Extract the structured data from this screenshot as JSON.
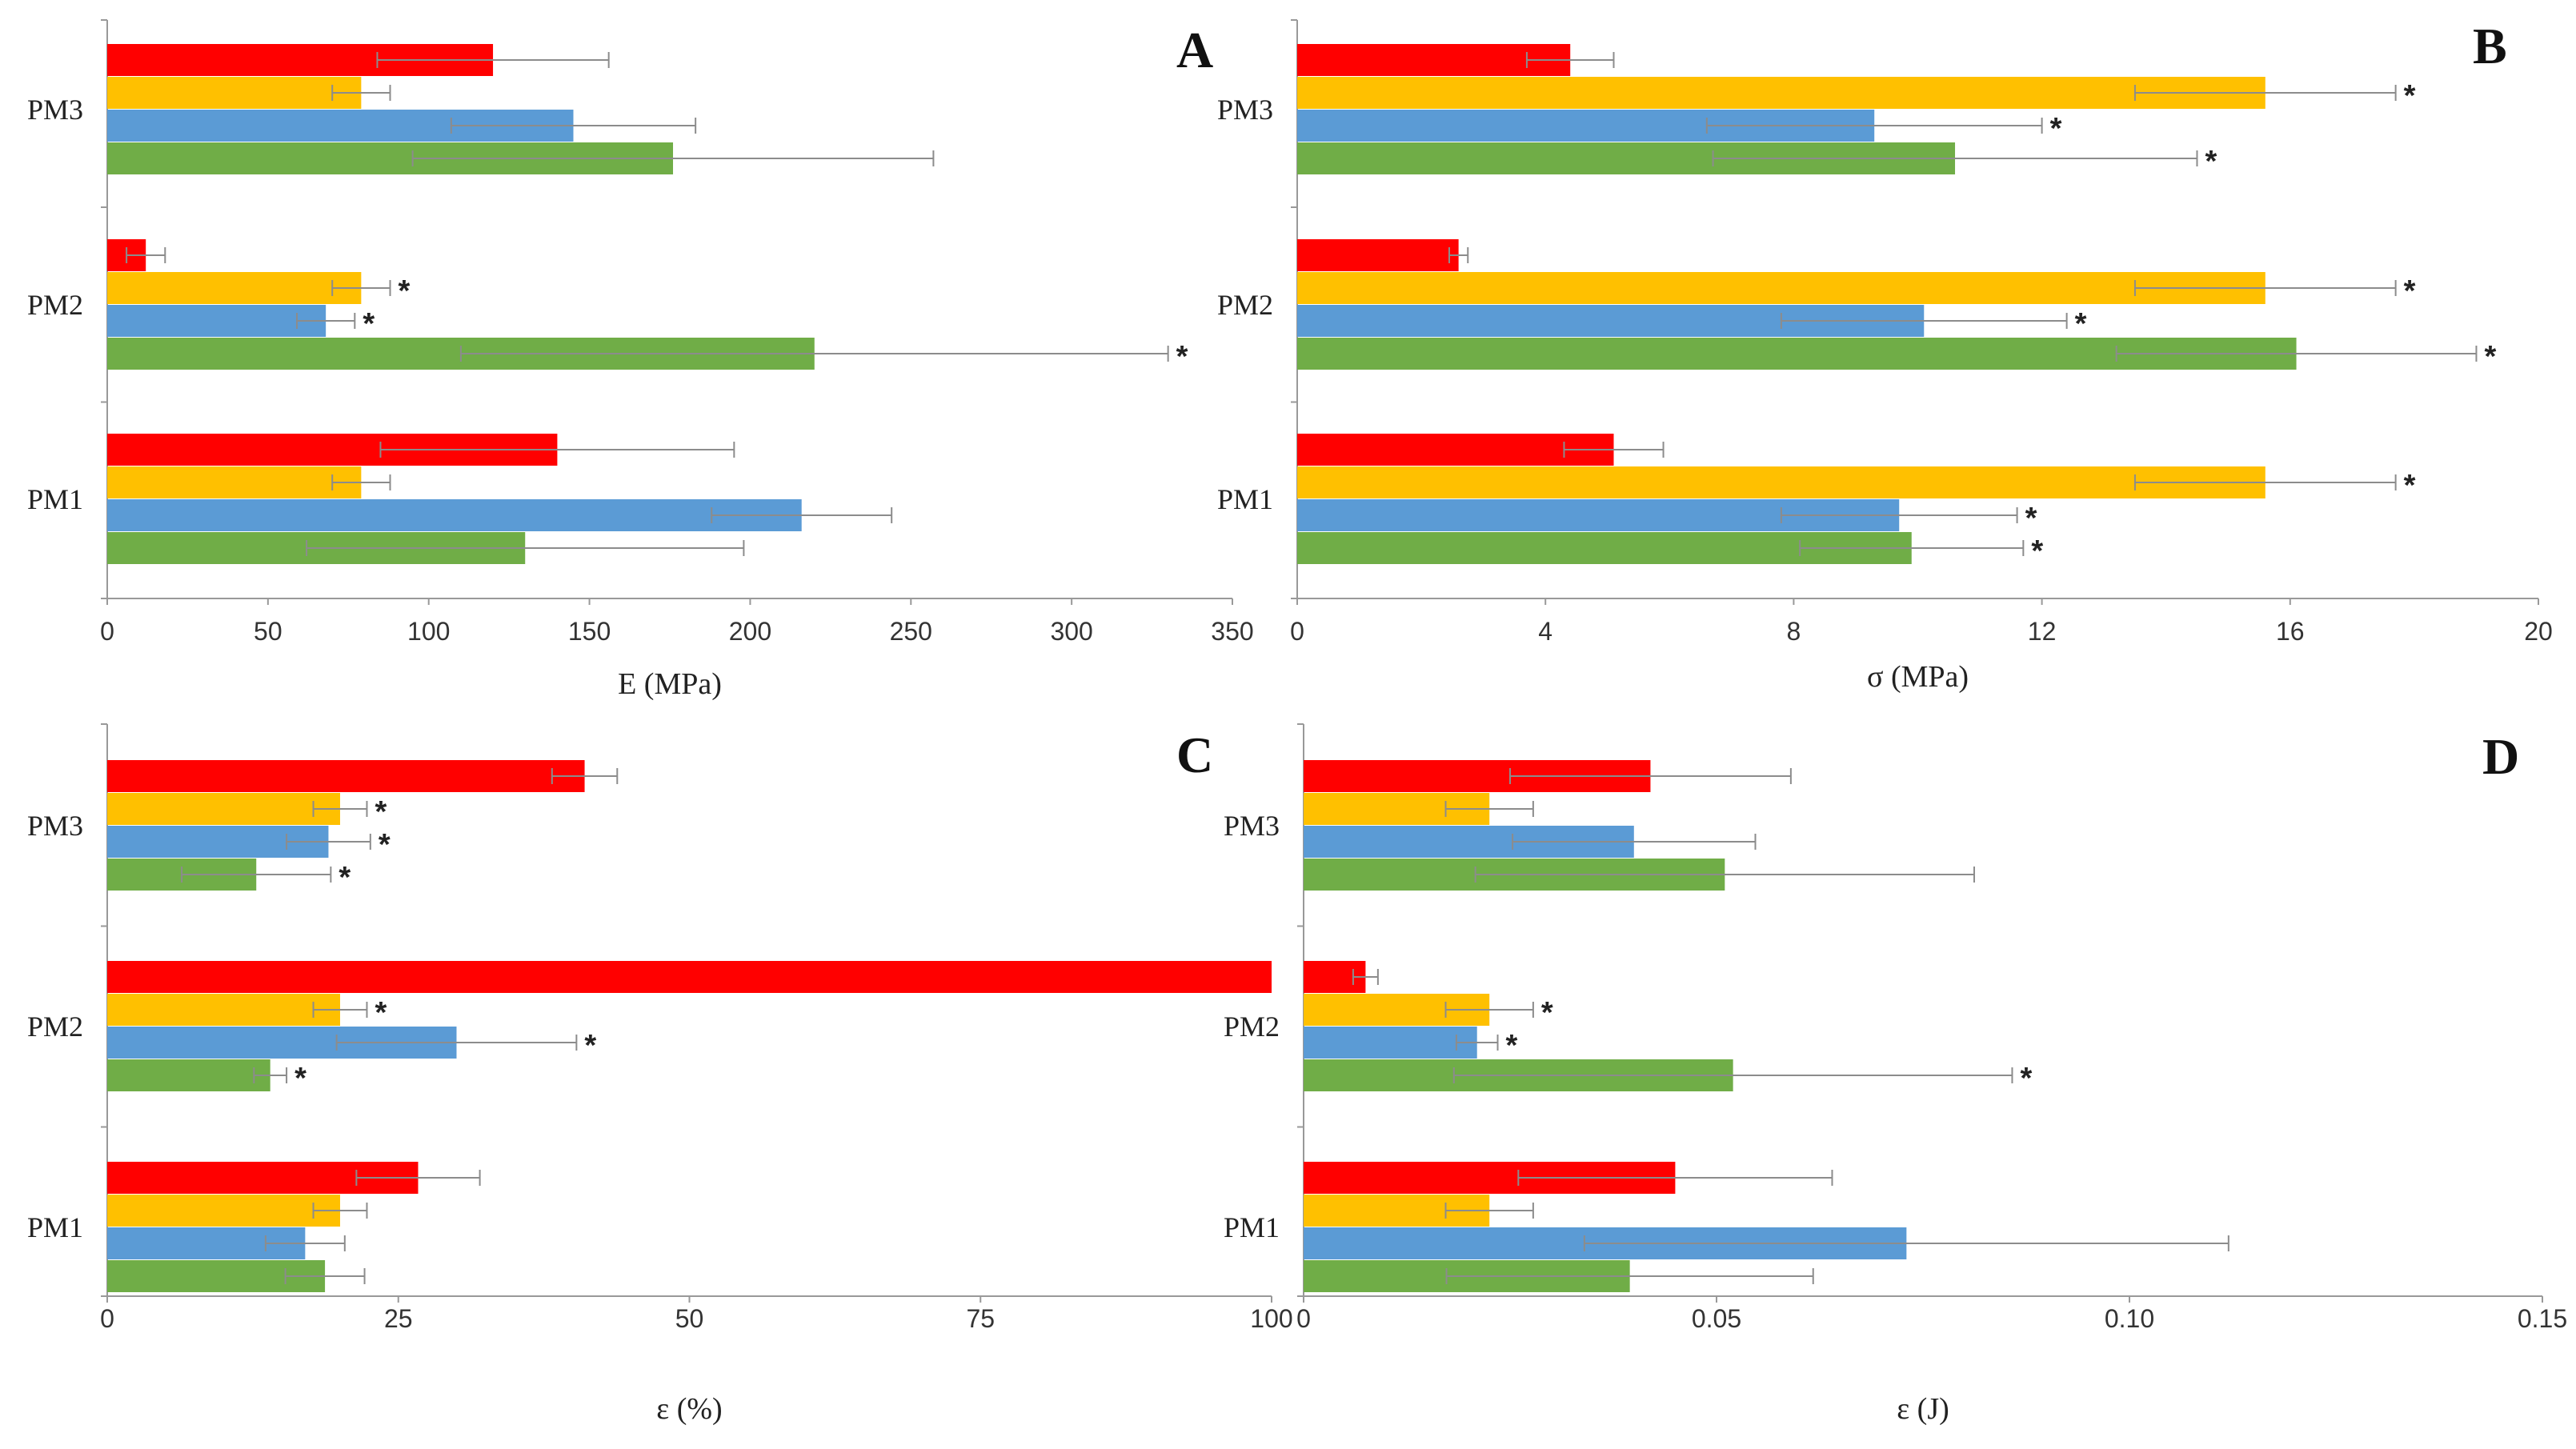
{
  "series_colors": [
    "#FF0000",
    "#FFC000",
    "#5B9BD5",
    "#70AD47"
  ],
  "chart_data": [
    {
      "type": "bar",
      "orientation": "horizontal",
      "panel": "A",
      "xlabel": "E (MPa)",
      "xlim": [
        0,
        350
      ],
      "xticks": [
        "0",
        "50",
        "100",
        "150",
        "200",
        "250",
        "300",
        "350"
      ],
      "xtick_values": [
        0,
        50,
        100,
        150,
        200,
        250,
        300,
        350
      ],
      "categories": [
        "PM1",
        "PM2",
        "PM3"
      ],
      "series": [
        {
          "name": "red",
          "values": [
            140,
            12,
            120
          ],
          "errors": [
            55,
            6,
            36
          ],
          "significant": [
            false,
            false,
            false
          ]
        },
        {
          "name": "yellow",
          "values": [
            79,
            79,
            79
          ],
          "errors": [
            9,
            9,
            9
          ],
          "significant": [
            false,
            true,
            false
          ]
        },
        {
          "name": "blue",
          "values": [
            216,
            68,
            145
          ],
          "errors": [
            28,
            9,
            38
          ],
          "significant": [
            false,
            true,
            false
          ]
        },
        {
          "name": "green",
          "values": [
            130,
            220,
            176
          ],
          "errors": [
            68,
            110,
            81
          ],
          "significant": [
            false,
            true,
            false
          ]
        }
      ],
      "sig_marker": "*"
    },
    {
      "type": "bar",
      "orientation": "horizontal",
      "panel": "B",
      "xlabel": "σ (MPa)",
      "xlim": [
        0,
        20
      ],
      "xticks": [
        "0",
        "4",
        "8",
        "12",
        "16",
        "20"
      ],
      "xtick_values": [
        0,
        4,
        8,
        12,
        16,
        20
      ],
      "categories": [
        "PM1",
        "PM2",
        "PM3"
      ],
      "series": [
        {
          "name": "red",
          "values": [
            5.1,
            2.6,
            4.4
          ],
          "errors": [
            0.8,
            0.15,
            0.7
          ],
          "significant": [
            false,
            false,
            false
          ]
        },
        {
          "name": "yellow",
          "values": [
            15.6,
            15.6,
            15.6
          ],
          "errors": [
            2.1,
            2.1,
            2.1
          ],
          "significant": [
            true,
            true,
            true
          ]
        },
        {
          "name": "blue",
          "values": [
            9.7,
            10.1,
            9.3
          ],
          "errors": [
            1.9,
            2.3,
            2.7
          ],
          "significant": [
            true,
            true,
            true
          ]
        },
        {
          "name": "green",
          "values": [
            9.9,
            16.1,
            10.6
          ],
          "errors": [
            1.8,
            2.9,
            3.9
          ],
          "significant": [
            true,
            true,
            true
          ]
        }
      ],
      "sig_marker": "*"
    },
    {
      "type": "bar",
      "orientation": "horizontal",
      "panel": "C",
      "xlabel": "ε (%)",
      "xlim": [
        0,
        100
      ],
      "xticks": [
        "0",
        "25",
        "50",
        "75",
        "100"
      ],
      "xtick_values": [
        0,
        25,
        50,
        75,
        100
      ],
      "categories": [
        "PM1",
        "PM2",
        "PM3"
      ],
      "series": [
        {
          "name": "red",
          "values": [
            26.7,
            100,
            41
          ],
          "errors": [
            5.3,
            0,
            2.8
          ],
          "significant": [
            false,
            false,
            false
          ]
        },
        {
          "name": "yellow",
          "values": [
            20,
            20,
            20
          ],
          "errors": [
            2.3,
            2.3,
            2.3
          ],
          "significant": [
            false,
            true,
            true
          ]
        },
        {
          "name": "blue",
          "values": [
            17,
            30,
            19
          ],
          "errors": [
            3.4,
            10.3,
            3.6
          ],
          "significant": [
            false,
            true,
            true
          ]
        },
        {
          "name": "green",
          "values": [
            18.7,
            14,
            12.8
          ],
          "errors": [
            3.4,
            1.4,
            6.4
          ],
          "significant": [
            false,
            true,
            true
          ]
        }
      ],
      "sig_marker": "*"
    },
    {
      "type": "bar",
      "orientation": "horizontal",
      "panel": "D",
      "xlabel": "ε (J)",
      "xlim": [
        0,
        0.15
      ],
      "xticks": [
        "0",
        "0.05",
        "0.10",
        "0.15"
      ],
      "xtick_values": [
        0,
        0.05,
        0.1,
        0.15
      ],
      "categories": [
        "PM1",
        "PM2",
        "PM3"
      ],
      "series": [
        {
          "name": "red",
          "values": [
            0.045,
            0.0075,
            0.042
          ],
          "errors": [
            0.019,
            0.0015,
            0.017
          ],
          "significant": [
            false,
            false,
            false
          ]
        },
        {
          "name": "yellow",
          "values": [
            0.0225,
            0.0225,
            0.0225
          ],
          "errors": [
            0.0053,
            0.0053,
            0.0053
          ],
          "significant": [
            false,
            true,
            false
          ]
        },
        {
          "name": "blue",
          "values": [
            0.073,
            0.021,
            0.04
          ],
          "errors": [
            0.039,
            0.0025,
            0.0147
          ],
          "significant": [
            false,
            true,
            false
          ]
        },
        {
          "name": "green",
          "values": [
            0.0395,
            0.052,
            0.051
          ],
          "errors": [
            0.0222,
            0.0338,
            0.0302
          ],
          "significant": [
            false,
            true,
            false
          ]
        }
      ],
      "sig_marker": "*"
    }
  ]
}
